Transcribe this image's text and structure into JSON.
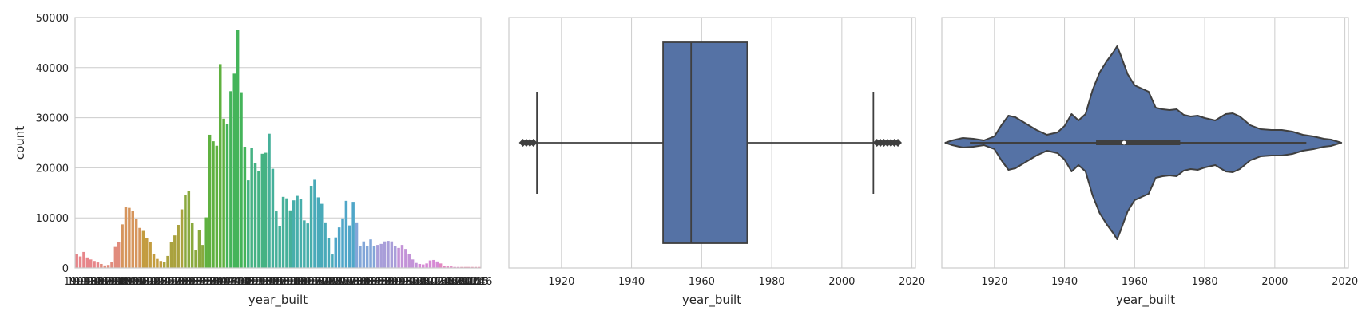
{
  "chart_data": [
    {
      "type": "bar",
      "xlabel": "year_built",
      "ylabel": "count",
      "ylim": [
        0,
        50000
      ],
      "yticks": [
        0,
        10000,
        20000,
        30000,
        40000,
        50000
      ],
      "categories": [
        1901,
        1902,
        1903,
        1904,
        1905,
        1906,
        1907,
        1908,
        1909,
        1910,
        1911,
        1912,
        1913,
        1914,
        1915,
        1916,
        1917,
        1918,
        1919,
        1920,
        1921,
        1922,
        1923,
        1924,
        1925,
        1926,
        1927,
        1928,
        1929,
        1930,
        1931,
        1932,
        1933,
        1934,
        1935,
        1936,
        1937,
        1938,
        1939,
        1940,
        1941,
        1942,
        1943,
        1944,
        1945,
        1946,
        1947,
        1948,
        1949,
        1950,
        1951,
        1952,
        1953,
        1954,
        1955,
        1956,
        1957,
        1958,
        1959,
        1960,
        1961,
        1962,
        1963,
        1964,
        1965,
        1966,
        1967,
        1968,
        1969,
        1970,
        1971,
        1972,
        1973,
        1974,
        1975,
        1976,
        1977,
        1978,
        1979,
        1980,
        1981,
        1982,
        1983,
        1984,
        1985,
        1986,
        1987,
        1988,
        1989,
        1990,
        1991,
        1992,
        1993,
        1994,
        1995,
        1996,
        1997,
        1998,
        1999,
        2000,
        2001,
        2002,
        2003,
        2004,
        2005,
        2006,
        2007,
        2008,
        2009,
        2010,
        2011,
        2012,
        2013,
        2014,
        2015,
        2016
      ],
      "values": [
        2800,
        2300,
        3200,
        2100,
        1700,
        1400,
        1100,
        800,
        500,
        600,
        1200,
        4200,
        5200,
        8700,
        12100,
        12000,
        11400,
        9800,
        8000,
        7400,
        5900,
        5100,
        2800,
        1800,
        1400,
        1200,
        2400,
        5200,
        6500,
        8600,
        11700,
        14500,
        15300,
        9000,
        3500,
        7600,
        4600,
        10100,
        26600,
        25300,
        24400,
        40700,
        29800,
        28700,
        35300,
        38800,
        47500,
        35100,
        24200,
        17500,
        23900,
        20900,
        19300,
        22800,
        23000,
        26800,
        19800,
        11300,
        8400,
        14200,
        13900,
        11500,
        13500,
        14400,
        13800,
        9500,
        8900,
        16400,
        17600,
        14100,
        12800,
        9100,
        5900,
        2700,
        6100,
        8100,
        9900,
        13400,
        8500,
        13200,
        9100,
        4300,
        5300,
        4400,
        5700,
        4400,
        4600,
        4800,
        5300,
        5400,
        5300,
        4400,
        4000,
        4600,
        3800,
        2800,
        1700,
        1000,
        800,
        700,
        900,
        1500,
        1600,
        1300,
        900,
        400,
        300,
        300,
        200,
        200,
        200,
        200,
        200,
        200,
        200,
        200
      ],
      "colors": [
        "#e7868a",
        "#e18c7d",
        "#d6955c",
        "#c39c3f",
        "#aaa23e",
        "#8aa93e",
        "#5fb140",
        "#44b45a",
        "#45b283",
        "#46b09a",
        "#47aeab",
        "#49aab9",
        "#4fa6c8",
        "#82a6d8",
        "#a99ed9",
        "#c393d8",
        "#d68ad5",
        "#e287c1",
        "#e78aa8"
      ]
    },
    {
      "type": "box",
      "xlabel": "year_built",
      "xlim": [
        1905,
        2021
      ],
      "xticks": [
        1920,
        1940,
        1960,
        1980,
        2000,
        2020
      ],
      "q1": 1949,
      "median": 1957,
      "q3": 1973,
      "whisker_low": 1913,
      "whisker_high": 2009,
      "outliers": [
        1909,
        1910,
        1911,
        1912,
        2010,
        2011,
        2012,
        2013,
        2014,
        2015,
        2016
      ],
      "color": "#5572a5"
    },
    {
      "type": "violin",
      "xlabel": "year_built",
      "xlim": [
        1905,
        2021
      ],
      "xticks": [
        1920,
        1940,
        1960,
        1980,
        2000,
        2020
      ],
      "density_peak_year": 1955,
      "q1": 1949,
      "median": 1957,
      "q3": 1973,
      "color": "#5572a5"
    }
  ]
}
